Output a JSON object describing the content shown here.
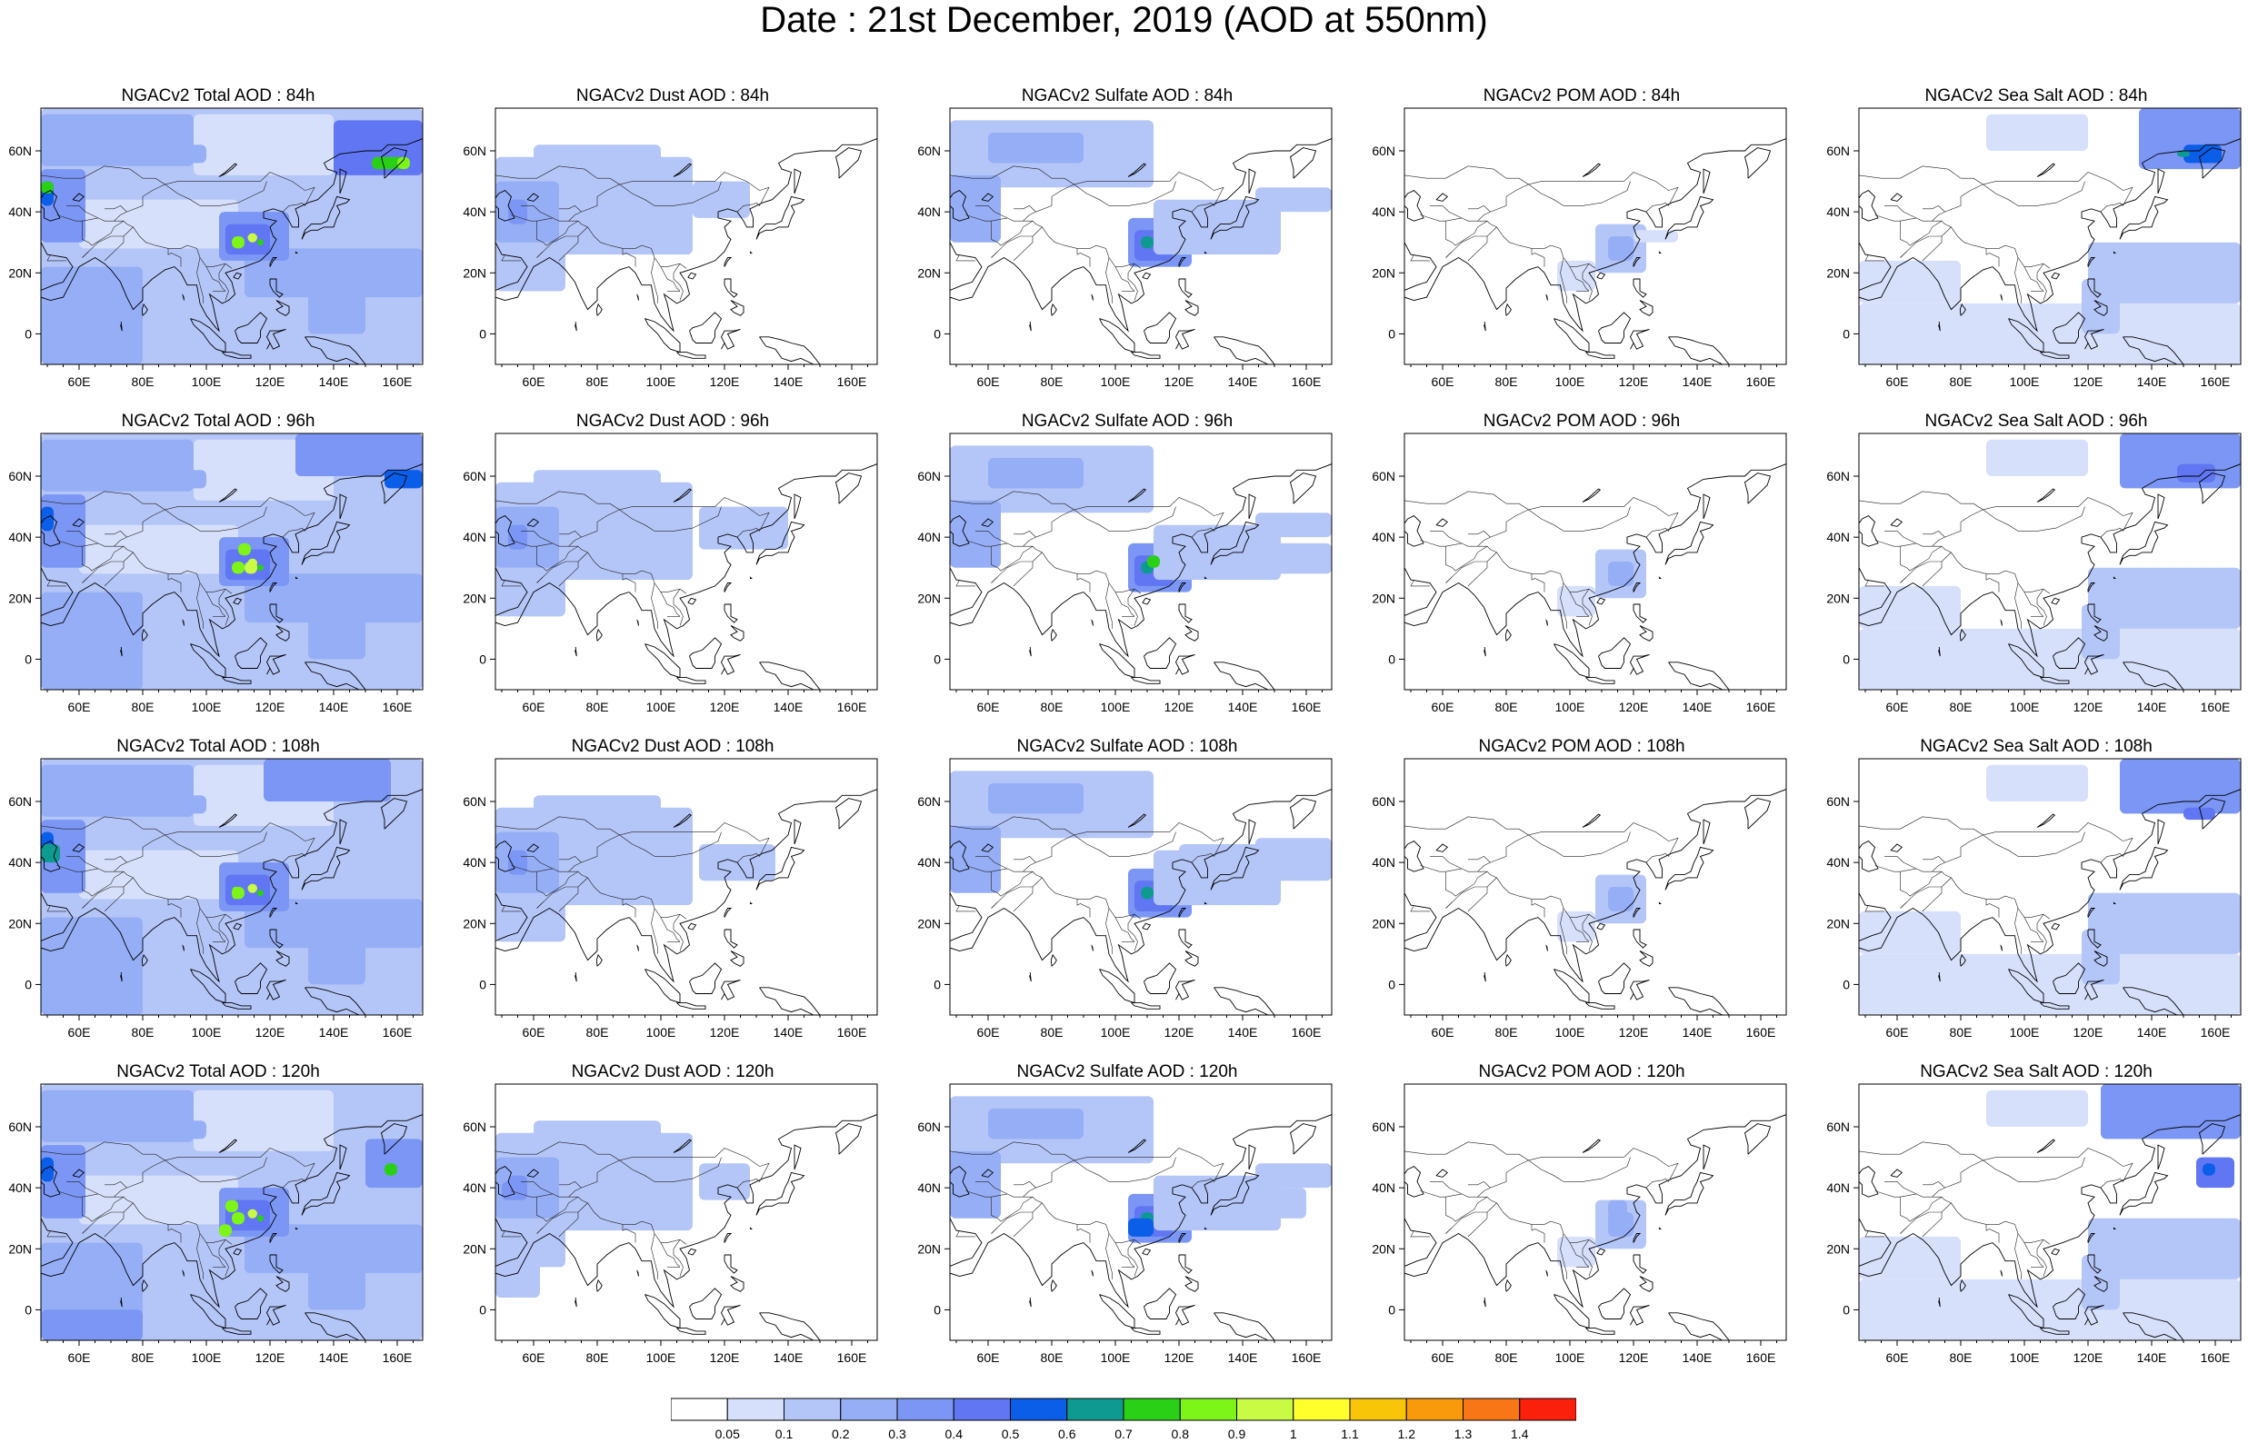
{
  "title": "Date : 21st December, 2019 (AOD at 550nm)",
  "lat_labels": [
    "60N",
    "40N",
    "20N",
    "0"
  ],
  "lon_labels": [
    "60E",
    "80E",
    "100E",
    "120E",
    "140E",
    "160E"
  ],
  "panels": [
    [
      {
        "title": "NGACv2 Total AOD : 84h",
        "species": "total"
      },
      {
        "title": "NGACv2 Dust AOD : 84h",
        "species": "dust"
      },
      {
        "title": "NGACv2 Sulfate AOD : 84h",
        "species": "sulfate"
      },
      {
        "title": "NGACv2 POM AOD : 84h",
        "species": "pom"
      },
      {
        "title": "NGACv2 Sea Salt AOD : 84h",
        "species": "seasalt"
      }
    ],
    [
      {
        "title": "NGACv2 Total AOD : 96h",
        "species": "total"
      },
      {
        "title": "NGACv2 Dust AOD : 96h",
        "species": "dust"
      },
      {
        "title": "NGACv2 Sulfate AOD : 96h",
        "species": "sulfate"
      },
      {
        "title": "NGACv2 POM AOD : 96h",
        "species": "pom"
      },
      {
        "title": "NGACv2 Sea Salt AOD : 96h",
        "species": "seasalt"
      }
    ],
    [
      {
        "title": "NGACv2 Total AOD : 108h",
        "species": "total"
      },
      {
        "title": "NGACv2 Dust AOD : 108h",
        "species": "dust"
      },
      {
        "title": "NGACv2 Sulfate AOD : 108h",
        "species": "sulfate"
      },
      {
        "title": "NGACv2 POM AOD : 108h",
        "species": "pom"
      },
      {
        "title": "NGACv2 Sea Salt AOD : 108h",
        "species": "seasalt"
      }
    ],
    [
      {
        "title": "NGACv2 Total AOD : 120h",
        "species": "total"
      },
      {
        "title": "NGACv2 Dust AOD : 120h",
        "species": "dust"
      },
      {
        "title": "NGACv2 Sulfate AOD : 120h",
        "species": "sulfate"
      },
      {
        "title": "NGACv2 POM AOD : 120h",
        "species": "pom"
      },
      {
        "title": "NGACv2 Sea Salt  AOD : 120h",
        "species": "seasalt"
      }
    ]
  ],
  "colorbar": {
    "labels": [
      "0.05",
      "0.1",
      "0.2",
      "0.3",
      "0.4",
      "0.5",
      "0.6",
      "0.7",
      "0.8",
      "0.9",
      "1",
      "1.1",
      "1.2",
      "1.3",
      "1.4"
    ],
    "colors": [
      "#ffffff",
      "#d7e0fb",
      "#b4c5f7",
      "#95aef6",
      "#7b96f4",
      "#6176f2",
      "#0b5ee8",
      "#0f9a91",
      "#2ad016",
      "#7df518",
      "#c9fa44",
      "#ffff2b",
      "#f8c509",
      "#f99a0d",
      "#f87616",
      "#fa200b"
    ]
  }
}
